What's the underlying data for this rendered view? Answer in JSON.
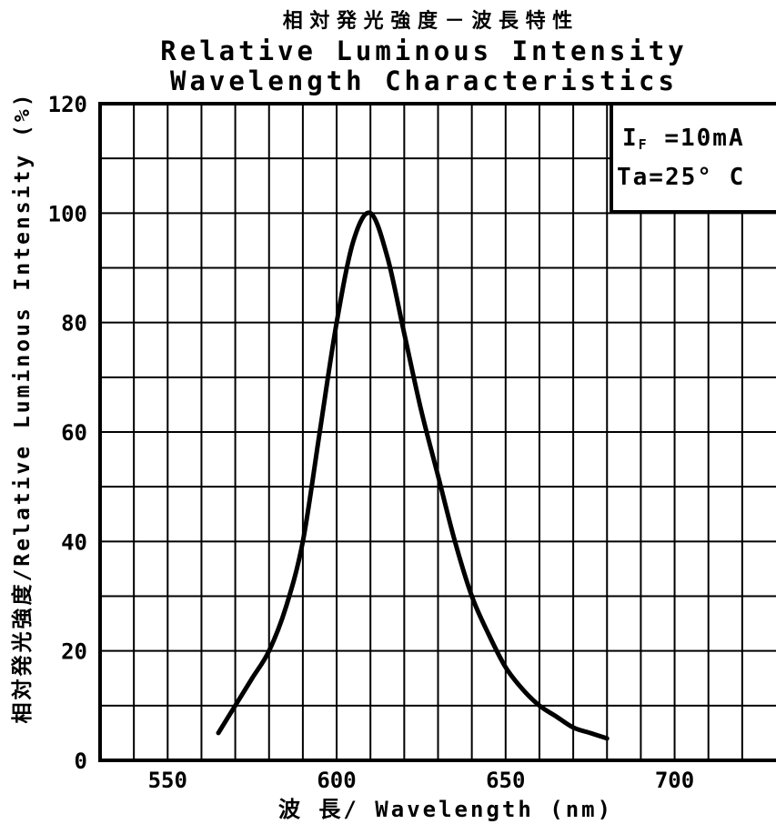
{
  "chart_data": {
    "type": "line",
    "title_jp": "相 対 発 光 強 度 － 波 長 特 性",
    "title_line1": "Relative Luminous Intensity",
    "title_line2": "Wavelength Characteristics",
    "ylabel": "相対発光強度/Relative Luminous Intensity (%)",
    "xlabel": "波 長/ Wavelength   (nm)",
    "xlim": [
      530,
      730
    ],
    "ylim": [
      0,
      120
    ],
    "x_ticks": [
      550,
      600,
      650,
      700
    ],
    "y_ticks": [
      0,
      20,
      40,
      60,
      80,
      100,
      120
    ],
    "grid": true,
    "conditions": {
      "current": "I<sub>F</sub> =10mA",
      "current_main": "I",
      "current_sub": "F",
      "current_rest": " =10mA",
      "temperature": "Ta=25° C"
    },
    "series": [
      {
        "x": [
          565,
          570,
          575,
          580,
          585,
          590,
          595,
          600,
          605,
          610,
          615,
          620,
          625,
          630,
          635,
          640,
          645,
          650,
          655,
          660,
          665,
          670,
          675,
          680
        ],
        "y": [
          5,
          10,
          15,
          20,
          28,
          40,
          60,
          80,
          95,
          100,
          92,
          78,
          64,
          52,
          40,
          30,
          23,
          17,
          13,
          10,
          8,
          6,
          5,
          4
        ]
      }
    ]
  }
}
